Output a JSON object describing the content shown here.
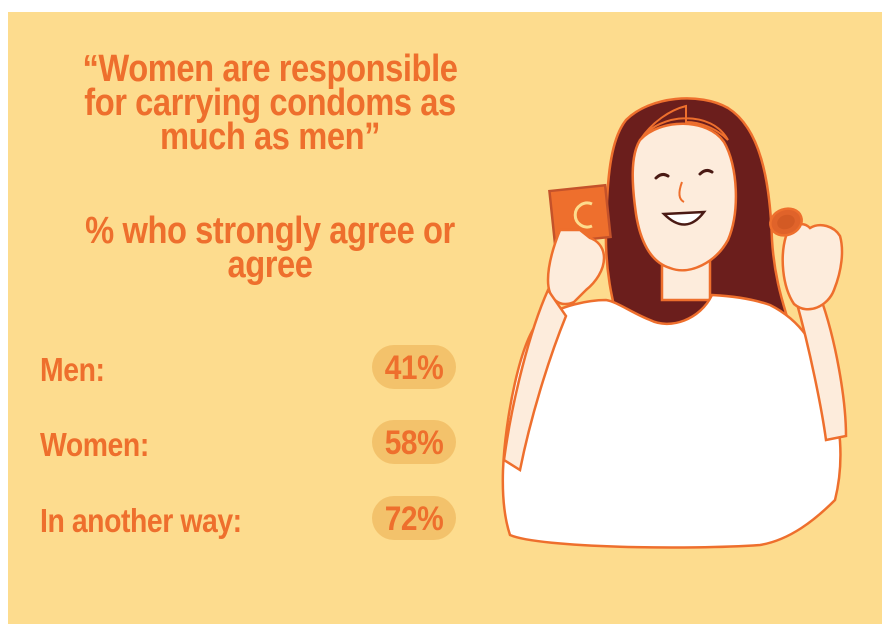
{
  "headline": {
    "line1": "“Women are responsible",
    "line2": "for carrying condoms as",
    "line3": "much as men”"
  },
  "subhead": {
    "line1": "% who strongly agree or",
    "line2": "agree"
  },
  "rows": [
    {
      "label": "Men:",
      "value": "41%"
    },
    {
      "label": "Women:",
      "value": "58%"
    },
    {
      "label": "In another way:",
      "value": "72%"
    }
  ],
  "colors": {
    "background": "#fddc8e",
    "accent": "#ee6f2d",
    "pill": "#f3c26b",
    "hair": "#6b1e1c"
  },
  "illustration": "woman-holding-condoms"
}
